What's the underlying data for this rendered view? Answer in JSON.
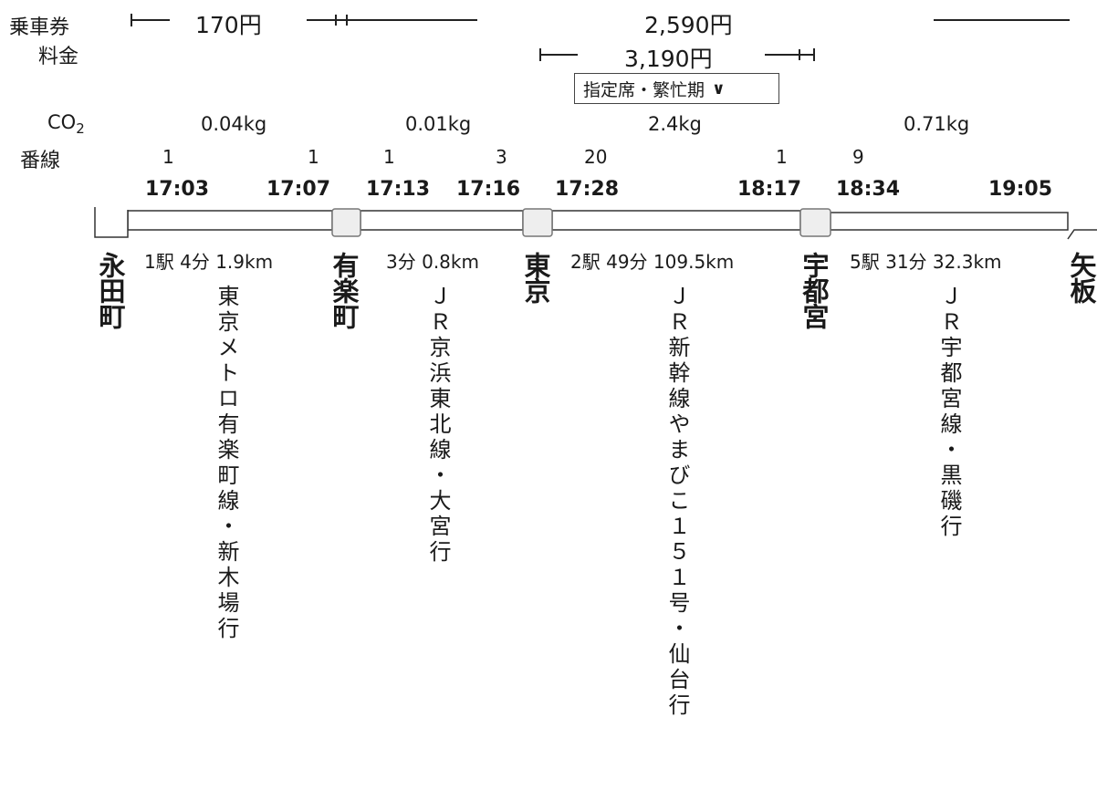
{
  "labels": {
    "ticket": "乗車券",
    "fee": "料金",
    "co2_prefix": "CO",
    "co2_sub": "2",
    "platform": "番線"
  },
  "fares": {
    "ticket_1": "170円",
    "ticket_2": "2,590円",
    "fee_1": "3,190円"
  },
  "seat_select": {
    "value": "指定席・繁忙期"
  },
  "segments": [
    {
      "co2": "0.04kg",
      "dep_platform": "1",
      "arr_platform": "1",
      "dep_time": "17:03",
      "arr_time": "17:07",
      "stations": "1駅",
      "duration": "4分",
      "distance": "1.9km",
      "line": "東京メトロ有楽町線・新木場行"
    },
    {
      "co2": "0.01kg",
      "dep_platform": "1",
      "arr_platform": "3",
      "dep_time": "17:13",
      "arr_time": "17:16",
      "stations": "",
      "duration": "3分",
      "distance": "0.8km",
      "line": "ＪＲ京浜東北線・大宮行"
    },
    {
      "co2": "2.4kg",
      "dep_platform": "20",
      "arr_platform": "1",
      "dep_time": "17:28",
      "arr_time": "18:17",
      "stations": "2駅",
      "duration": "49分",
      "distance": "109.5km",
      "line": "ＪＲ新幹線やまびこ１５１号・仙台行"
    },
    {
      "co2": "0.71kg",
      "dep_platform": "9",
      "arr_platform": "",
      "dep_time": "18:34",
      "arr_time": "19:05",
      "stations": "5駅",
      "duration": "31分",
      "distance": "32.3km",
      "line": "ＪＲ宇都宮線・黒磯行"
    }
  ],
  "stations": [
    "永田町",
    "有楽町",
    "東京",
    "宇都宮",
    "矢板"
  ]
}
